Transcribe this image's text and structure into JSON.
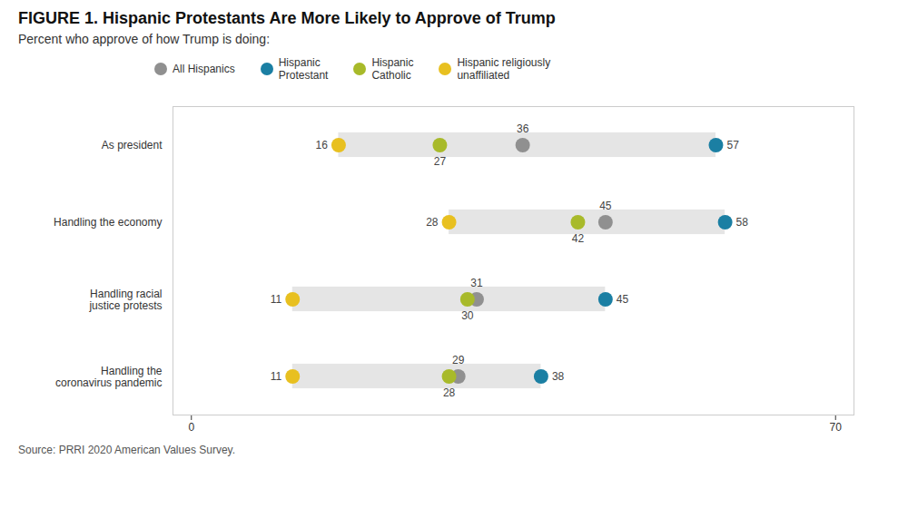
{
  "chart_data": {
    "type": "dot",
    "orientation": "horizontal",
    "title": "FIGURE 1. Hispanic Protestants Are More Likely to Approve of Trump",
    "subtitle": "Percent who approve of how Trump is doing:",
    "annotations": [
      "Source: PRRI 2020 American Values Survey."
    ],
    "categories": [
      "As president",
      "Handling the economy",
      "Handling racial\njustice protests",
      "Handling the\ncoronavirus pandemic"
    ],
    "series": [
      {
        "name": "All Hispanics",
        "color": "#909090",
        "values": [
          36,
          45,
          31,
          29
        ]
      },
      {
        "name": "Hispanic\nProtestant",
        "color": "#1b7fa3",
        "values": [
          57,
          58,
          45,
          38
        ]
      },
      {
        "name": "Hispanic\nCatholic",
        "color": "#a8ba2a",
        "values": [
          27,
          42,
          30,
          28
        ]
      },
      {
        "name": "Hispanic religiously\nunaffiliated",
        "color": "#e8c020",
        "values": [
          16,
          28,
          11,
          11
        ]
      }
    ],
    "ranges": [
      [
        16,
        57
      ],
      [
        28,
        58
      ],
      [
        11,
        45
      ],
      [
        11,
        38
      ]
    ],
    "color": "#e5e5e5",
    "xlim": [
      -2,
      72
    ],
    "xticks": [
      0,
      70
    ],
    "grid": false,
    "legend": "top",
    "data_labels": true
  }
}
